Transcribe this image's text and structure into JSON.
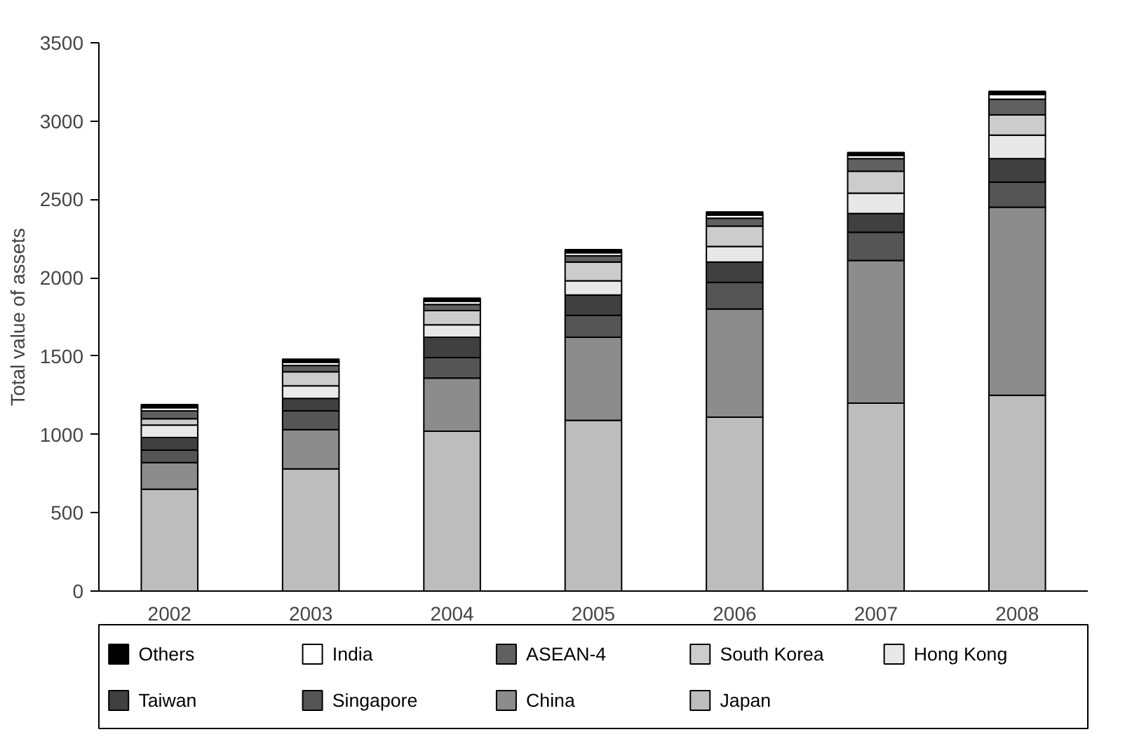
{
  "chart_data": {
    "type": "bar",
    "stacked": true,
    "ylabel": "Total value of assets",
    "categories": [
      "2002",
      "2003",
      "2004",
      "2005",
      "2006",
      "2007",
      "2008"
    ],
    "ylim": [
      0,
      3500
    ],
    "yticks": [
      0,
      500,
      1000,
      1500,
      2000,
      2500,
      3000,
      3500
    ],
    "grid": false,
    "legend": "bottom",
    "series": [
      {
        "name": "Japan",
        "color": "#bdbdbd",
        "values": [
          650,
          780,
          1020,
          1090,
          1110,
          1200,
          1250
        ]
      },
      {
        "name": "China",
        "color": "#8c8c8c",
        "values": [
          170,
          250,
          340,
          530,
          690,
          910,
          1200
        ]
      },
      {
        "name": "Singapore",
        "color": "#555555",
        "values": [
          80,
          120,
          130,
          140,
          170,
          180,
          160
        ]
      },
      {
        "name": "Taiwan",
        "color": "#404040",
        "values": [
          80,
          80,
          130,
          130,
          130,
          120,
          150
        ]
      },
      {
        "name": "Hong Kong",
        "color": "#e8e8e8",
        "values": [
          80,
          80,
          80,
          90,
          100,
          130,
          150
        ]
      },
      {
        "name": "South Korea",
        "color": "#cccccc",
        "values": [
          40,
          90,
          90,
          120,
          130,
          140,
          130
        ]
      },
      {
        "name": "ASEAN-4",
        "color": "#606060",
        "values": [
          50,
          40,
          40,
          40,
          50,
          80,
          100
        ]
      },
      {
        "name": "India",
        "color": "#ffffff",
        "values": [
          20,
          20,
          20,
          20,
          20,
          20,
          30
        ]
      },
      {
        "name": "Others",
        "color": "#000000",
        "values": [
          20,
          20,
          20,
          20,
          20,
          20,
          20
        ]
      }
    ]
  }
}
